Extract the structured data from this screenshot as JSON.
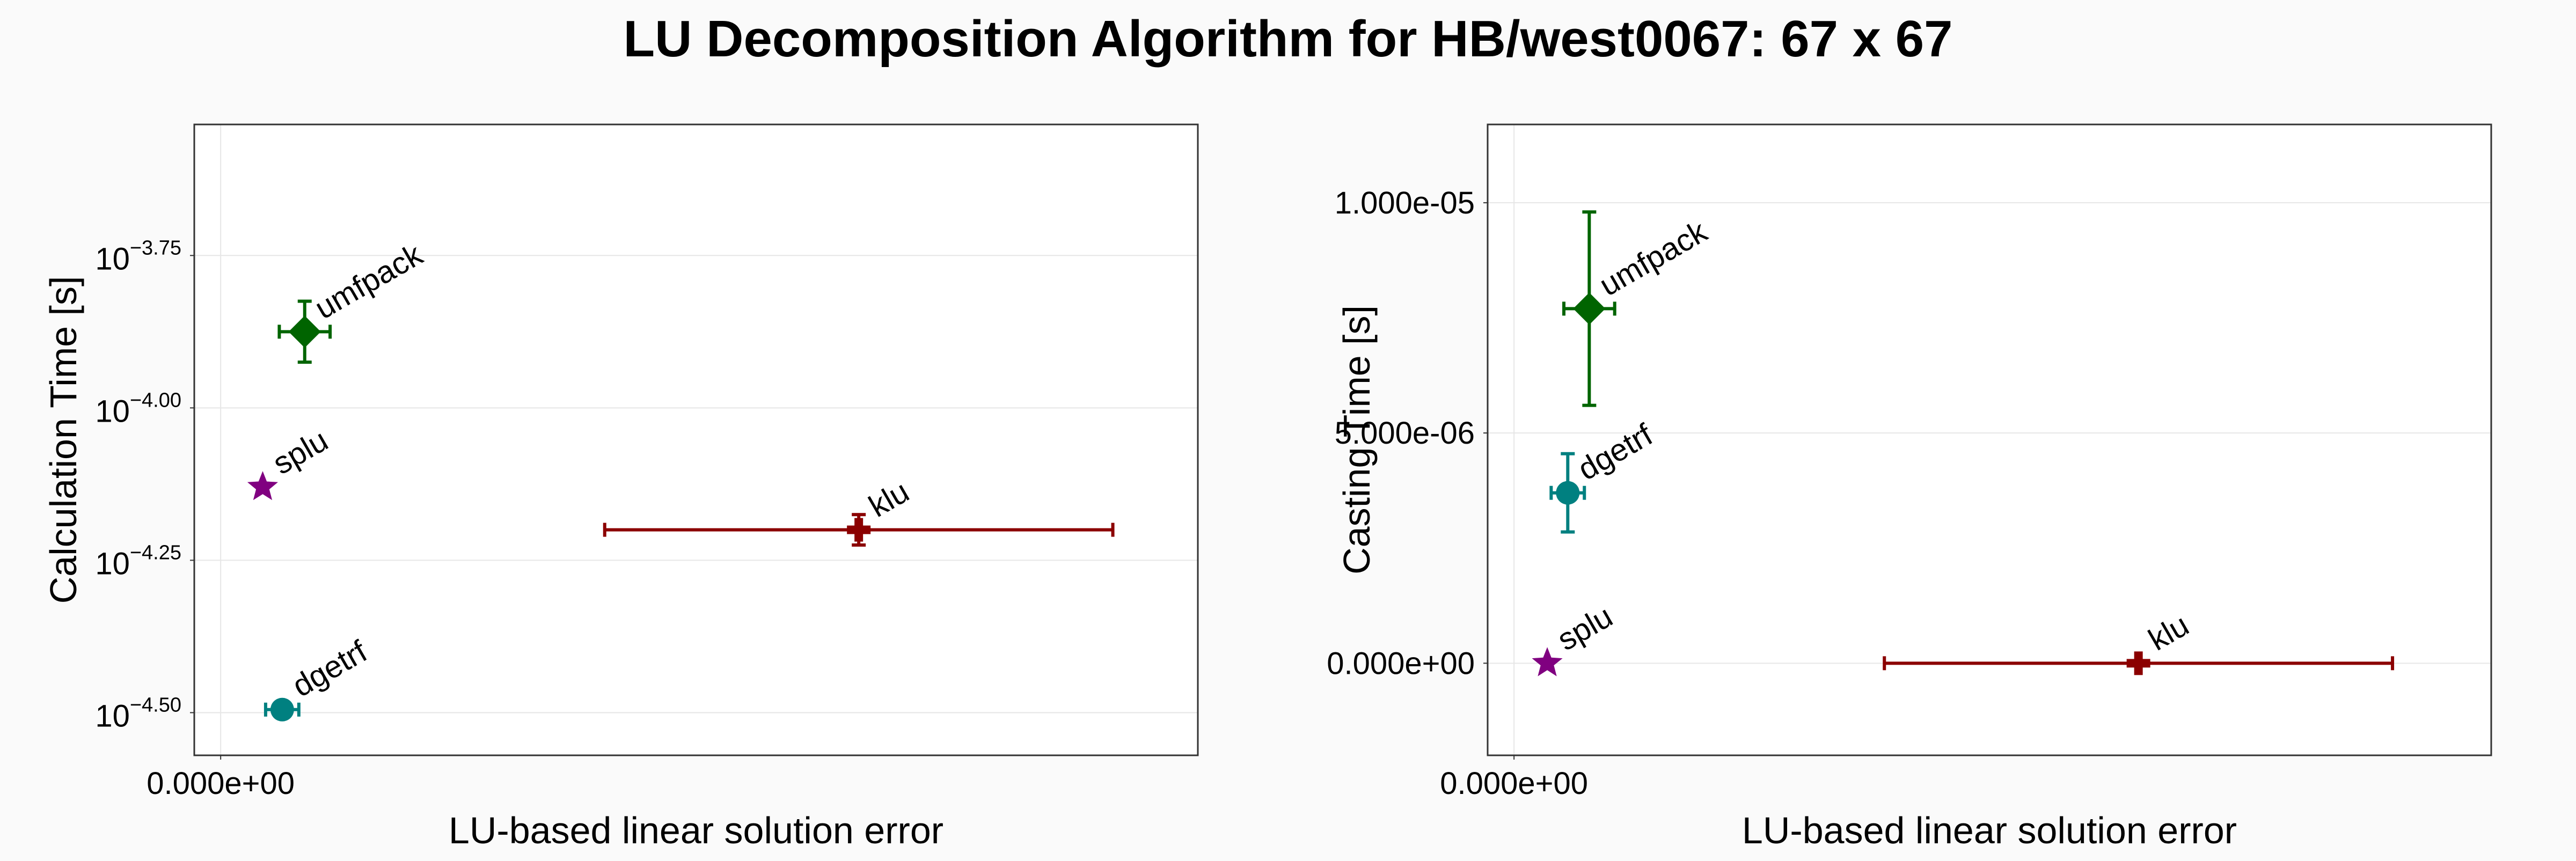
{
  "title": "LU Decomposition Algorithm for HB/west0067: 67 x 67",
  "colors": {
    "umfpack": "#006400",
    "splu": "#800080",
    "klu": "#8b0000",
    "dgetrf": "#008080",
    "grid": "#e6e6e6",
    "frame": "#333333"
  },
  "chart_data": [
    {
      "type": "scatter",
      "xlabel": "LU-based linear solution error",
      "ylabel": "Calculation Time [s]",
      "y_scale": "log10",
      "xlim": [
        -2.7e-17,
        1e-15
      ],
      "ylim_log10": [
        -4.57,
        -3.535
      ],
      "x_ticks": [
        {
          "value": 0,
          "label": "0.000e+00"
        }
      ],
      "y_ticks": [
        {
          "value": -3.75,
          "base": "10",
          "exp": "−3.75"
        },
        {
          "value": -4.0,
          "base": "10",
          "exp": "−4.00"
        },
        {
          "value": -4.25,
          "base": "10",
          "exp": "−4.25"
        },
        {
          "value": -4.5,
          "base": "10",
          "exp": "−4.50"
        }
      ],
      "grid": true,
      "series": [
        {
          "name": "umfpack",
          "marker": "diamond",
          "x": 8.6e-17,
          "x_err": 2.6e-17,
          "y_log10": -3.875,
          "y_err_hi": 0.05,
          "y_err_lo": 0.05
        },
        {
          "name": "splu",
          "marker": "star",
          "x": 4.3e-17,
          "x_err": 0,
          "y_log10": -4.13,
          "y_err_hi": 0,
          "y_err_lo": 0
        },
        {
          "name": "klu",
          "marker": "cross",
          "x": 6.53e-16,
          "x_err": 2.6e-16,
          "y_log10": -4.2,
          "y_err_hi": 0.025,
          "y_err_lo": 0.025
        },
        {
          "name": "dgetrf",
          "marker": "circle",
          "x": 6.3e-17,
          "x_err": 1.7e-17,
          "y_log10": -4.495,
          "y_err_hi": 0,
          "y_err_lo": 0
        }
      ]
    },
    {
      "type": "scatter",
      "xlabel": "LU-based linear solution error",
      "ylabel": "Casting Time [s]",
      "y_scale": "linear",
      "xlim": [
        -2.7e-17,
        1e-15
      ],
      "ylim": [
        -2e-06,
        1.17e-05
      ],
      "x_ticks": [
        {
          "value": 0,
          "label": "0.000e+00"
        }
      ],
      "y_ticks": [
        {
          "value": 0,
          "label": "0.000e+00"
        },
        {
          "value": 5e-06,
          "label": "5.000e-06"
        },
        {
          "value": 1e-05,
          "label": "1.000e-05"
        }
      ],
      "grid": true,
      "series": [
        {
          "name": "umfpack",
          "marker": "diamond",
          "x": 7.7e-17,
          "x_err": 2.6e-17,
          "y": 7.7e-06,
          "y_err_hi": 2.1e-06,
          "y_err_lo": 2.1e-06
        },
        {
          "name": "dgetrf",
          "marker": "circle",
          "x": 5.5e-17,
          "x_err": 1.7e-17,
          "y": 3.7e-06,
          "y_err_hi": 8.5e-07,
          "y_err_lo": 8.5e-07
        },
        {
          "name": "splu",
          "marker": "star",
          "x": 3.4e-17,
          "x_err": 0,
          "y": 0.0,
          "y_err_hi": 0,
          "y_err_lo": 0
        },
        {
          "name": "klu",
          "marker": "cross",
          "x": 6.39e-16,
          "x_err": 2.6e-16,
          "y": 0.0,
          "y_err_hi": 0,
          "y_err_lo": 0
        }
      ]
    }
  ]
}
